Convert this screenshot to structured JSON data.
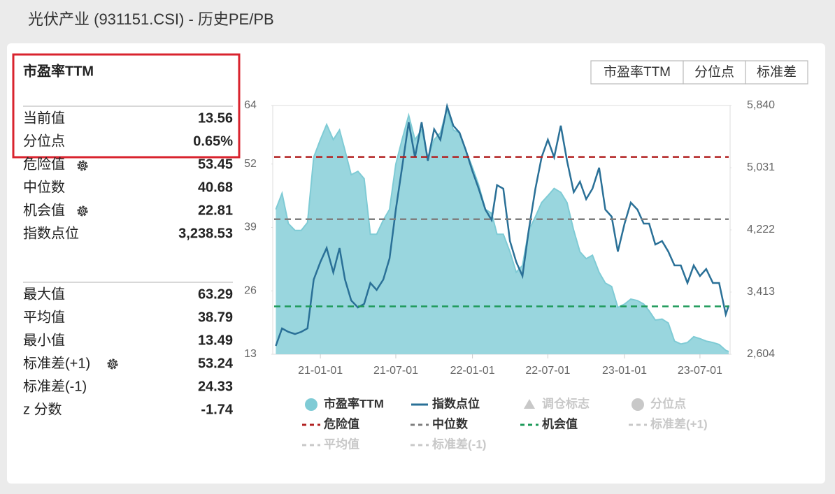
{
  "header": {
    "title": "光伏产业 (931151.CSI) - 历史PE/PB"
  },
  "stats": {
    "title": "市盈率TTM",
    "groups": [
      [
        [
          "当前值",
          "13.56"
        ],
        [
          "分位点",
          "0.65%"
        ],
        [
          "危险值",
          "53.45"
        ],
        [
          "中位数",
          "40.68"
        ],
        [
          "机会值",
          "22.81"
        ],
        [
          "指数点位",
          "3,238.53"
        ]
      ],
      [
        [
          "最大值",
          "63.29"
        ],
        [
          "平均值",
          "38.79"
        ],
        [
          "最小值",
          "13.49"
        ],
        [
          "标准差(+1)",
          "53.24"
        ],
        [
          "标准差(-1)",
          "24.33"
        ],
        [
          "z 分数",
          "-1.74"
        ]
      ]
    ]
  },
  "tabs": [
    "市盈率TTM",
    "分位点",
    "标准差"
  ],
  "chart_data": {
    "type": "line",
    "x": [
      "20-09-16",
      "20-10-01",
      "20-10-16",
      "20-11-01",
      "20-11-16",
      "20-12-01",
      "20-12-16",
      "21-01-01",
      "21-01-16",
      "21-02-01",
      "21-02-16",
      "21-03-01",
      "21-03-16",
      "21-04-01",
      "21-04-16",
      "21-05-01",
      "21-05-16",
      "21-06-01",
      "21-06-16",
      "21-07-01",
      "21-07-16",
      "21-08-01",
      "21-08-16",
      "21-09-01",
      "21-09-16",
      "21-10-01",
      "21-10-16",
      "21-11-01",
      "21-11-16",
      "21-12-01",
      "21-12-16",
      "22-01-01",
      "22-01-16",
      "22-02-01",
      "22-02-16",
      "22-03-01",
      "22-03-16",
      "22-04-01",
      "22-04-16",
      "22-05-01",
      "22-05-16",
      "22-06-01",
      "22-06-16",
      "22-07-01",
      "22-07-16",
      "22-08-01",
      "22-08-16",
      "22-09-01",
      "22-09-16",
      "22-10-01",
      "22-10-16",
      "22-11-01",
      "22-11-16",
      "22-12-01",
      "22-12-16",
      "23-01-01",
      "23-01-16",
      "23-02-01",
      "23-02-16",
      "23-03-01",
      "23-03-16",
      "23-04-01",
      "23-04-16",
      "23-05-01",
      "23-05-16",
      "23-06-01",
      "23-06-16",
      "23-07-01",
      "23-07-16",
      "23-08-01",
      "23-08-16",
      "23-09-01",
      "23-09-08"
    ],
    "xlim": [
      "20-09-12",
      "23-09-08"
    ],
    "xticks": [
      "21-01-01",
      "21-07-01",
      "22-01-01",
      "22-07-01",
      "23-01-01",
      "23-07-01"
    ],
    "ylim": [
      13,
      64
    ],
    "yticks": [
      13,
      26,
      39,
      52,
      64
    ],
    "y2lim": [
      2604,
      5840
    ],
    "y2ticks": [
      {
        "value": 2604,
        "label": "2,604"
      },
      {
        "value": 3413,
        "label": "3,413"
      },
      {
        "value": 4222,
        "label": "4,222"
      },
      {
        "value": 5031,
        "label": "5,031"
      },
      {
        "value": 5840,
        "label": "5,840"
      }
    ],
    "series": [
      {
        "name": "市盈率TTM",
        "color": "#7fcbd5",
        "fill": "#93d4dc",
        "values": [
          42.7,
          46,
          39.8,
          38.4,
          38.4,
          40,
          53.4,
          57,
          60.1,
          57,
          59,
          54.8,
          49.8,
          50.5,
          49,
          37.6,
          37.6,
          40.5,
          42.7,
          52,
          57,
          62,
          57,
          59,
          53.4,
          57,
          58.4,
          63.3,
          59,
          58.4,
          54.8,
          51.3,
          47.7,
          42.7,
          41.9,
          37.6,
          37.6,
          34,
          29.8,
          31.2,
          38.4,
          41.2,
          44.1,
          45.5,
          47,
          46.2,
          44.1,
          38.4,
          34,
          32.6,
          33.3,
          29.8,
          27.6,
          26.9,
          22.6,
          23.3,
          24.3,
          24,
          23.3,
          21.9,
          20,
          20.2,
          19.4,
          15.7,
          15.1,
          15.4,
          16.6,
          16.2,
          15.7,
          15.4,
          15,
          13.8,
          13.56
        ]
      },
      {
        "name": "指数点位",
        "color": "#2a7097",
        "axis": "y2",
        "values": [
          2713,
          2940,
          2895,
          2868,
          2895,
          2940,
          3577,
          3804,
          3986,
          3668,
          3986,
          3577,
          3304,
          3213,
          3259,
          3531,
          3440,
          3577,
          3849,
          4486,
          5031,
          5622,
          5167,
          5622,
          5122,
          5531,
          5395,
          5831,
          5577,
          5486,
          5258,
          4986,
          4758,
          4486,
          4349,
          4804,
          4758,
          4077,
          3804,
          3622,
          4213,
          4758,
          5167,
          5395,
          5167,
          5577,
          5122,
          4713,
          4849,
          4622,
          4758,
          5031,
          4486,
          4395,
          3940,
          4304,
          4577,
          4486,
          4304,
          4304,
          4031,
          4077,
          3940,
          3759,
          3759,
          3531,
          3759,
          3622,
          3713,
          3531,
          3531,
          3122,
          3238.53
        ]
      }
    ],
    "reference_lines": [
      {
        "name": "危险值",
        "color": "#b22222",
        "value": 53.45
      },
      {
        "name": "中位数",
        "color": "#7f7f7f",
        "value": 40.68
      },
      {
        "name": "机会值",
        "color": "#1e9a5a",
        "value": 22.81
      }
    ],
    "inactive_legend": [
      {
        "name": "调仓标志",
        "symbol": "triangle"
      },
      {
        "name": "分位点",
        "symbol": "circle"
      },
      {
        "name": "标准差(+1)",
        "symbol": "dash"
      },
      {
        "name": "平均值",
        "symbol": "dash"
      },
      {
        "name": "标准差(-1)",
        "symbol": "dash"
      }
    ],
    "inactive_color": "#c8c8c8"
  }
}
